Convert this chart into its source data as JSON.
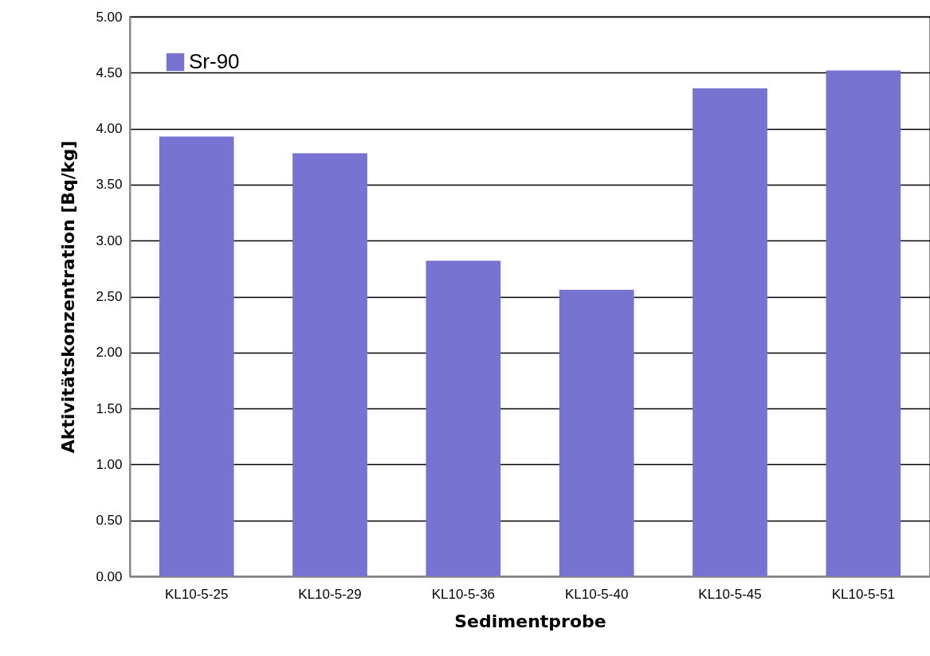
{
  "chart_data": {
    "type": "bar",
    "xlabel": "Sedimentprobe",
    "ylabel": "Aktivitätskonzentration [Bq/kg]",
    "categories": [
      "KL10-5-25",
      "KL10-5-29",
      "KL10-5-36",
      "KL10-5-40",
      "KL10-5-45",
      "KL10-5-51"
    ],
    "series": [
      {
        "name": "Sr-90",
        "color": "#7674d0",
        "values": [
          3.93,
          3.78,
          2.82,
          2.56,
          4.36,
          4.52
        ]
      }
    ],
    "ylim": [
      0,
      5
    ],
    "yticks": [
      {
        "value": 0,
        "label": "0.00"
      },
      {
        "value": 0.5,
        "label": "0.50"
      },
      {
        "value": 1,
        "label": "1.00"
      },
      {
        "value": 1.5,
        "label": "1.50"
      },
      {
        "value": 2,
        "label": "2.00"
      },
      {
        "value": 2.5,
        "label": "2.50"
      },
      {
        "value": 3,
        "label": "3.00"
      },
      {
        "value": 3.5,
        "label": "3.50"
      },
      {
        "value": 4,
        "label": "4.00"
      },
      {
        "value": 4.5,
        "label": "4.50"
      },
      {
        "value": 5,
        "label": "5.00"
      }
    ],
    "grid": "y",
    "legend": "top left"
  }
}
